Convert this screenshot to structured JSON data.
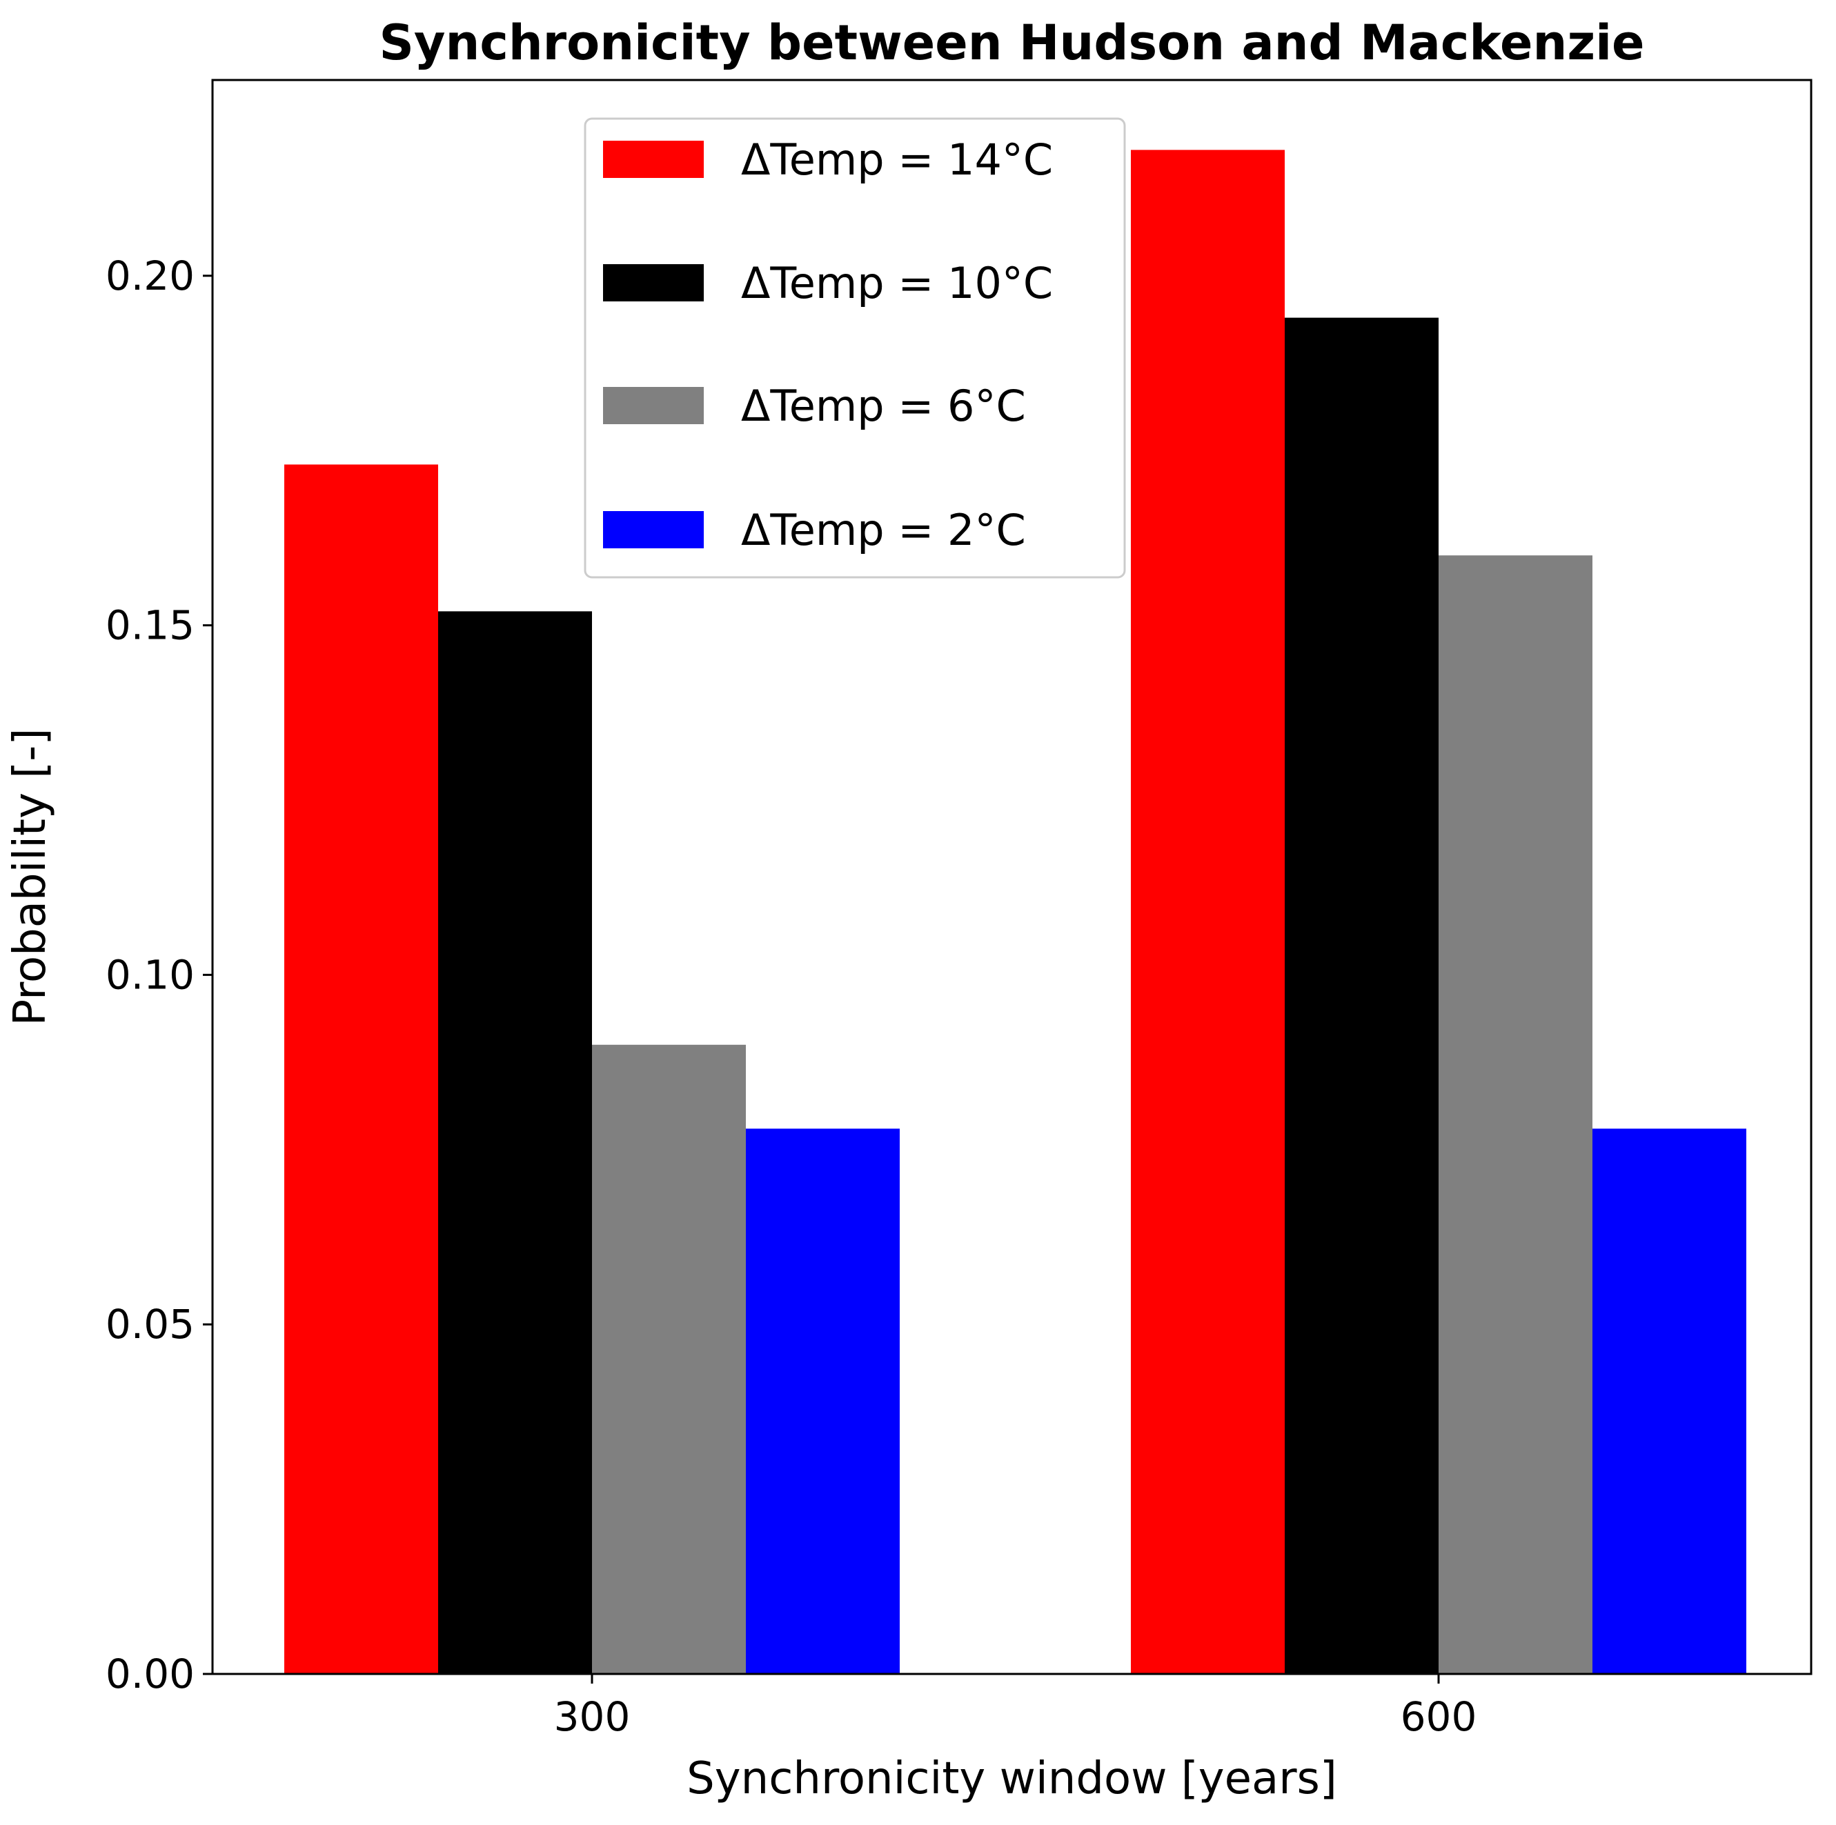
{
  "chart_data": {
    "type": "bar",
    "title": "Synchronicity between Hudson and Mackenzie",
    "xlabel": "Synchronicity window [years]",
    "ylabel": "Probability [-]",
    "categories": [
      "300",
      "600"
    ],
    "series": [
      {
        "name": "ΔTemp = 14°C",
        "color": "#ff0000",
        "values": [
          0.173,
          0.218
        ]
      },
      {
        "name": "ΔTemp = 10°C",
        "color": "#000000",
        "values": [
          0.152,
          0.194
        ]
      },
      {
        "name": "ΔTemp = 6°C",
        "color": "#808080",
        "values": [
          0.09,
          0.16
        ]
      },
      {
        "name": "ΔTemp = 2°C",
        "color": "#0000ff",
        "values": [
          0.078,
          0.078
        ]
      }
    ],
    "ylim": [
      0,
      0.228
    ],
    "yticks": [
      0.0,
      0.05,
      0.1,
      0.15,
      0.2
    ],
    "ytick_labels": [
      "0.00",
      "0.05",
      "0.10",
      "0.15",
      "0.20"
    ],
    "grid": false,
    "legend_position": "top-center"
  }
}
